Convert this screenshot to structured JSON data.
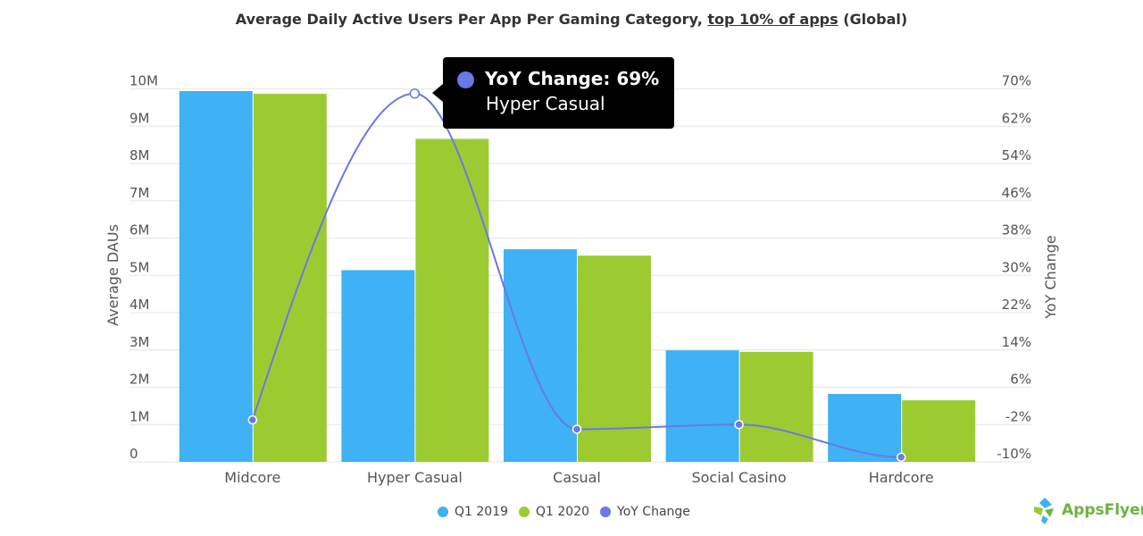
{
  "chart_data": {
    "type": "bar",
    "title_pre": "Average Daily Active Users Per App Per Gaming Category, ",
    "title_link": "top 10% of apps",
    "title_post": " (Global)",
    "categories": [
      "Midcore",
      "Hyper Casual",
      "Casual",
      "Social Casino",
      "Hardcore"
    ],
    "series": [
      {
        "name": "Q1 2019",
        "type": "bar",
        "axis": "left",
        "color": "#3fb1f5",
        "values": [
          9940000,
          5140000,
          5700000,
          2990000,
          1820000
        ]
      },
      {
        "name": "Q1 2020",
        "type": "bar",
        "axis": "left",
        "color": "#9bcb30",
        "values": [
          9870000,
          8660000,
          5530000,
          2950000,
          1650000
        ]
      },
      {
        "name": "YoY Change",
        "type": "line",
        "axis": "right",
        "color": "#6b78e5",
        "values": [
          -1,
          69,
          -3,
          -2,
          -9
        ]
      }
    ],
    "ylabel": "Average DAUs",
    "ylabel_right": "YoY Change",
    "ylim": [
      0,
      10000000
    ],
    "ylim_right": [
      -10,
      70
    ],
    "yticks": [
      "0",
      "1M",
      "2M",
      "3M",
      "4M",
      "5M",
      "6M",
      "7M",
      "8M",
      "9M",
      "10M"
    ],
    "yticks_right": [
      "-10%",
      "-2%",
      "6%",
      "14%",
      "22%",
      "30%",
      "38%",
      "46%",
      "54%",
      "62%",
      "70%"
    ],
    "grid": true,
    "legend_position": "bottom"
  },
  "tooltip": {
    "label": "YoY Change: 69%",
    "category": "Hyper Casual",
    "active_index": 1
  },
  "logo": "AppsFlyer"
}
